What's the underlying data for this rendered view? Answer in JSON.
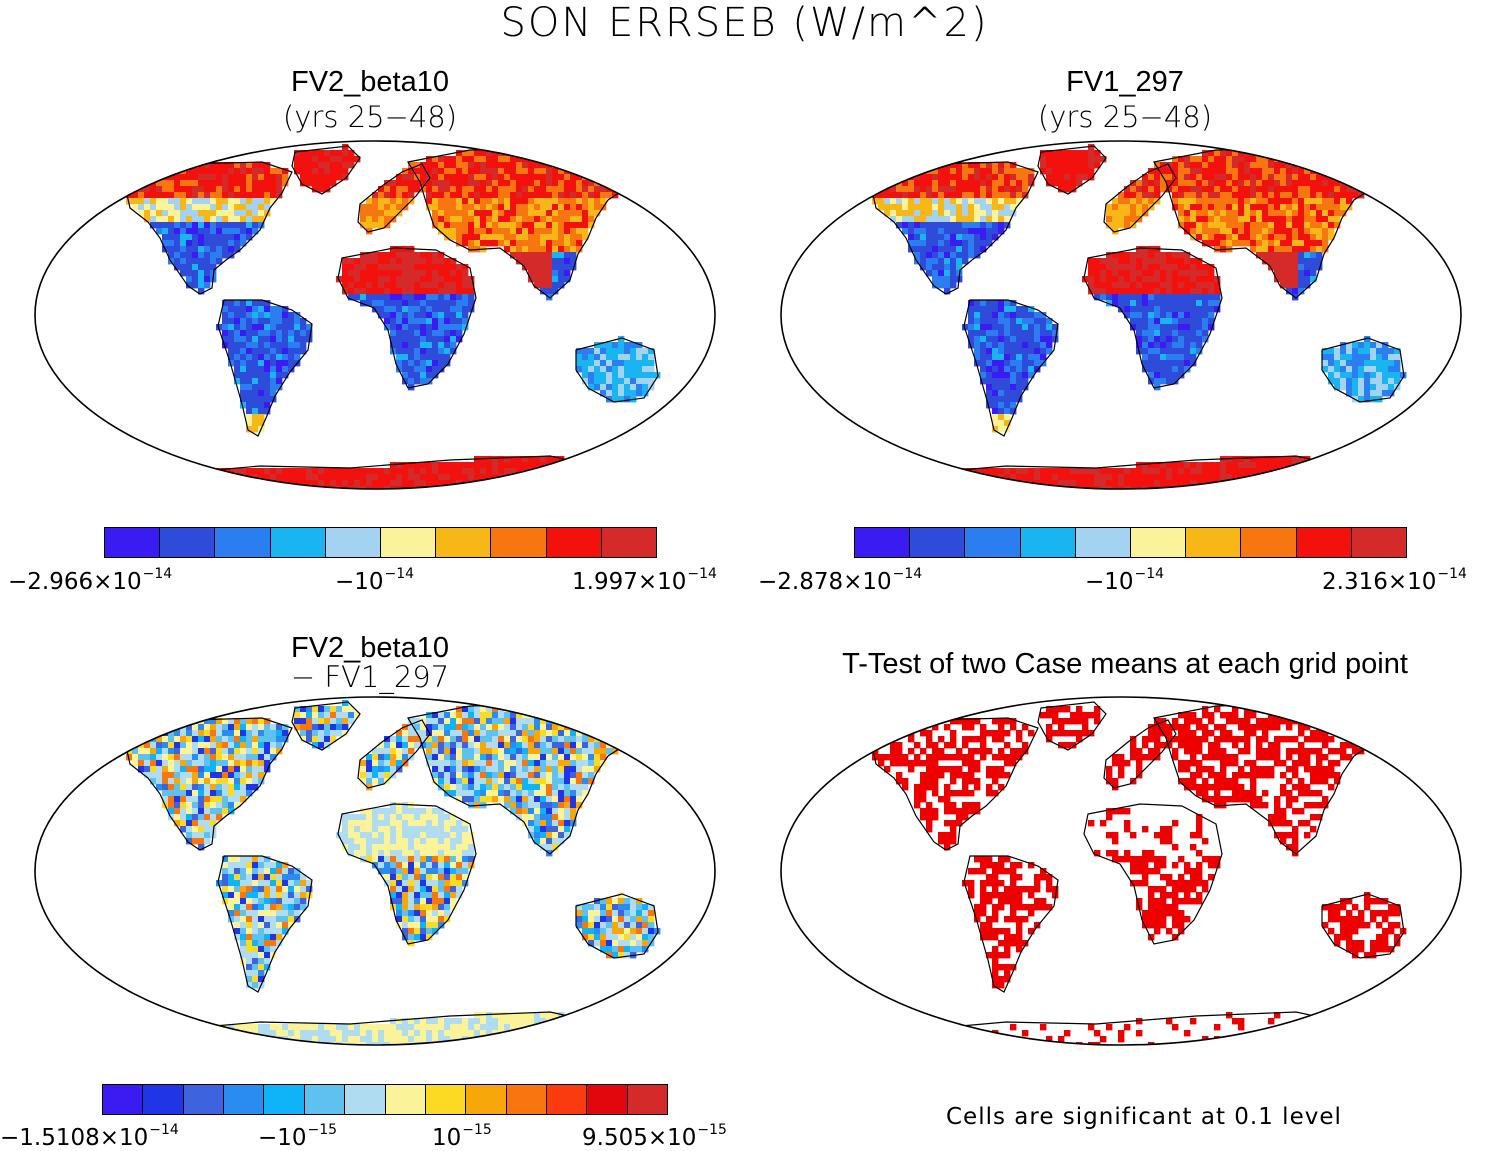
{
  "title": "SON ERRSEB (W/m^2)",
  "panels": [
    {
      "id": "tl",
      "title": "FV2_beta10",
      "subtitle": "(yrs 25−48)",
      "scheme": "mean1"
    },
    {
      "id": "tr",
      "title": "FV1_297",
      "subtitle": "(yrs 25−48)",
      "scheme": "mean2"
    },
    {
      "id": "bl",
      "title": "FV2_beta10",
      "subtitle": "− FV1_297",
      "scheme": "diff"
    },
    {
      "id": "br",
      "title": "T-Test of two Case means at each grid point",
      "subtitle": "",
      "scheme": "ttest"
    }
  ],
  "colorbars": [
    {
      "id": "cb1",
      "colors": [
        "#3a1cf2",
        "#2f4bd9",
        "#2a7ef0",
        "#19b5f0",
        "#a3d3f0",
        "#fbf39a",
        "#f7b717",
        "#f7760f",
        "#f2110d",
        "#d42a2a"
      ],
      "labels": [
        {
          "m": "−2.966×10",
          "e": "−14"
        },
        {
          "m": "−10",
          "e": "−14"
        },
        {
          "m": "1.997×10",
          "e": "−14"
        }
      ]
    },
    {
      "id": "cb2",
      "colors": [
        "#3a1cf2",
        "#2f4bd9",
        "#2a7ef0",
        "#19b5f0",
        "#a3d3f0",
        "#fbf39a",
        "#f7b717",
        "#f7760f",
        "#f2110d",
        "#d42a2a"
      ],
      "labels": [
        {
          "m": "−2.878×10",
          "e": "−14"
        },
        {
          "m": "−10",
          "e": "−14"
        },
        {
          "m": "2.316×10",
          "e": "−14"
        }
      ]
    },
    {
      "id": "cb3",
      "colors": [
        "#3a1cf2",
        "#1f35e6",
        "#3e63df",
        "#2a8bf0",
        "#0fb3f7",
        "#5fc1ef",
        "#b0dcf2",
        "#fbf39a",
        "#fcd923",
        "#f8a70b",
        "#f7760f",
        "#fa3b0f",
        "#e2070d",
        "#d42a2a"
      ],
      "labels": [
        {
          "m": "−1.5108×10",
          "e": "−14"
        },
        {
          "m": "−10",
          "e": "−15"
        },
        {
          "m": "10",
          "e": "−15"
        },
        {
          "m": "9.505×10",
          "e": "−15"
        }
      ]
    }
  ],
  "note": "Cells are significant at 0.1 level",
  "chart_data": [
    {
      "type": "heatmap",
      "title": "FV2_beta10 (yrs 25−48)",
      "projection": "Robinson",
      "colorbar_range": [
        -2.966e-14,
        1.997e-14
      ],
      "levels": 10
    },
    {
      "type": "heatmap",
      "title": "FV1_297 (yrs 25−48)",
      "projection": "Robinson",
      "colorbar_range": [
        -2.878e-14,
        2.316e-14
      ],
      "levels": 10
    },
    {
      "type": "heatmap",
      "title": "FV2_beta10 − FV1_297",
      "projection": "Robinson",
      "colorbar_range": [
        -1.5108e-14,
        9.505e-15
      ],
      "levels": 14
    },
    {
      "type": "heatmap",
      "title": "T-Test of two Case means at each grid point",
      "projection": "Robinson",
      "significance_level": 0.1,
      "significant_color": "#ee0000"
    }
  ]
}
